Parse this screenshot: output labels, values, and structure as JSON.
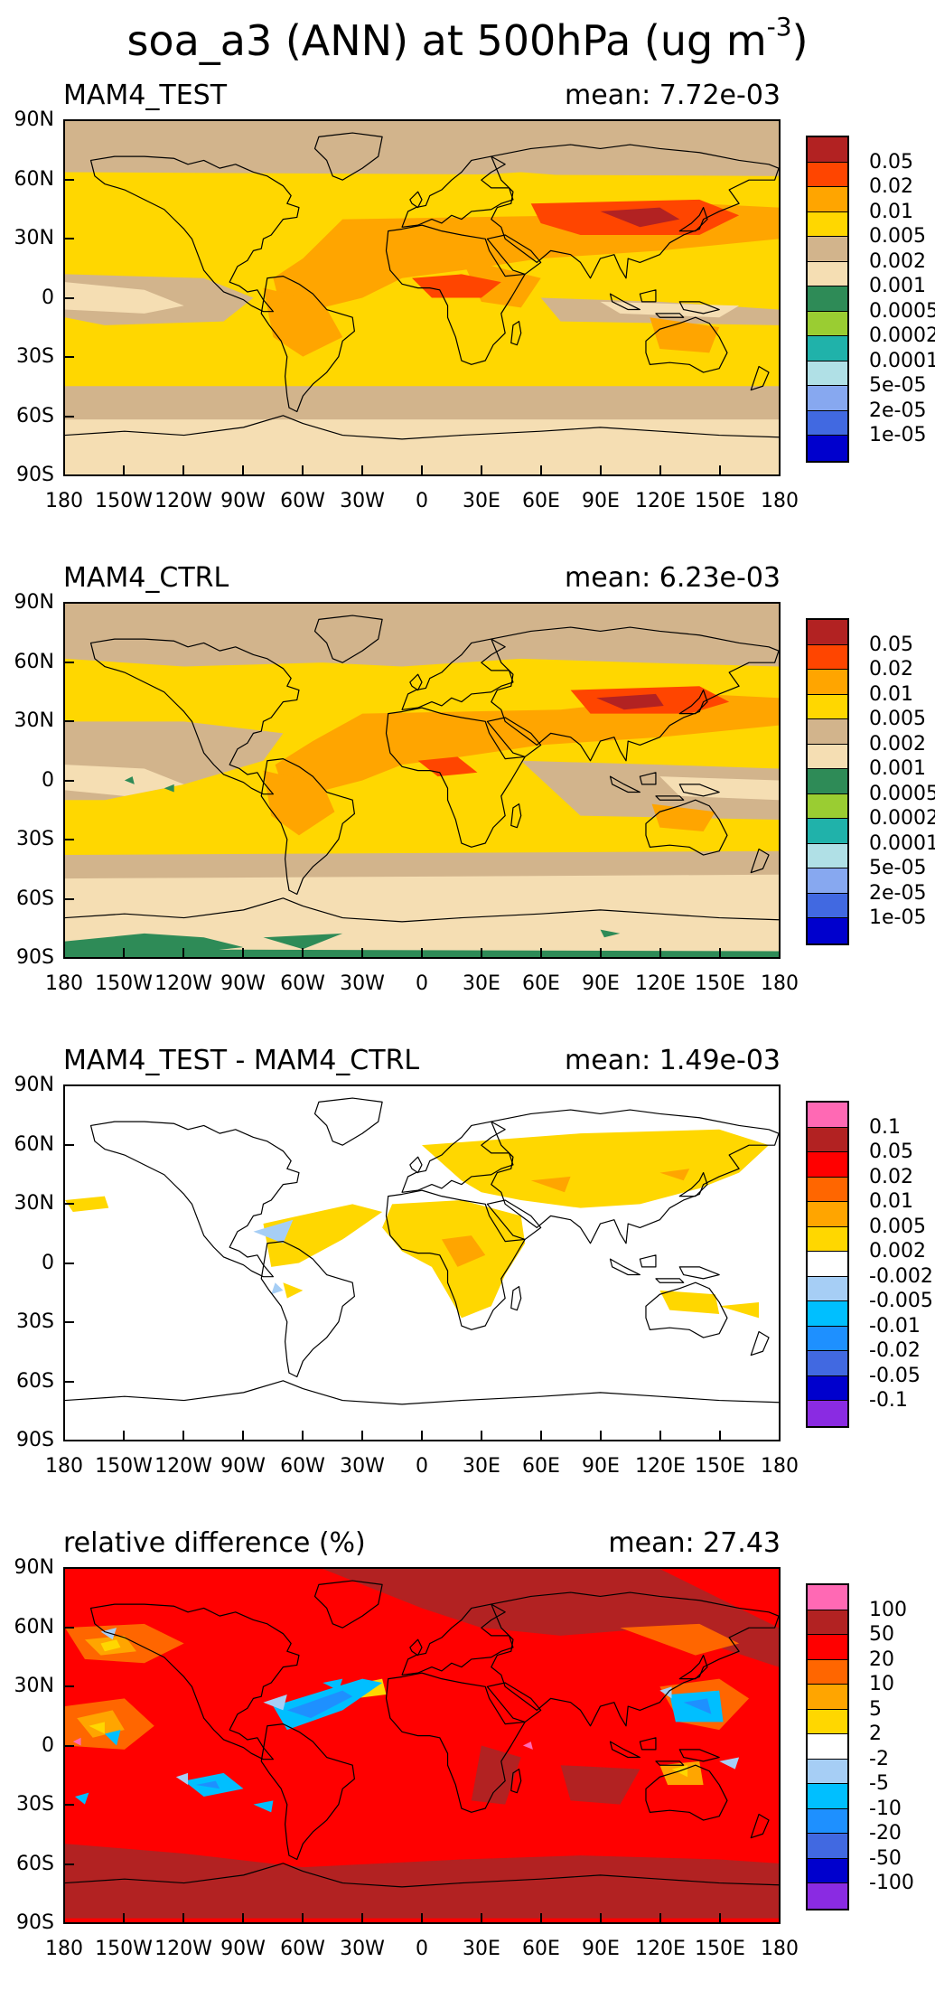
{
  "title": "soa_a3 (ANN) at 500hPa (ug m",
  "title_sup": "-3",
  "title_close": ")",
  "lat_labels": [
    "90N",
    "60N",
    "30N",
    "0",
    "30S",
    "60S",
    "90S"
  ],
  "lon_labels": [
    "180",
    "150W",
    "120W",
    "90W",
    "60W",
    "30W",
    "0",
    "30E",
    "60E",
    "90E",
    "120E",
    "150E",
    "180"
  ],
  "panels": [
    {
      "name": "MAM4_TEST",
      "mean": "mean: 7.72e-03",
      "levels": [
        "0.05",
        "0.02",
        "0.01",
        "0.005",
        "0.002",
        "0.001",
        "0.0005",
        "0.0002",
        "0.0001",
        "5e-05",
        "2e-05",
        "1e-05"
      ],
      "colors": [
        "#b22222",
        "#ff4500",
        "#ffa500",
        "#ffd700",
        "#d2b48c",
        "#f5deb3",
        "#2e8b57",
        "#9acd32",
        "#20b2aa",
        "#b0e0e6",
        "#87a8f0",
        "#4169e1",
        "#0000cd"
      ]
    },
    {
      "name": "MAM4_CTRL",
      "mean": "mean: 6.23e-03",
      "levels": [
        "0.05",
        "0.02",
        "0.01",
        "0.005",
        "0.002",
        "0.001",
        "0.0005",
        "0.0002",
        "0.0001",
        "5e-05",
        "2e-05",
        "1e-05"
      ],
      "colors": [
        "#b22222",
        "#ff4500",
        "#ffa500",
        "#ffd700",
        "#d2b48c",
        "#f5deb3",
        "#2e8b57",
        "#9acd32",
        "#20b2aa",
        "#b0e0e6",
        "#87a8f0",
        "#4169e1",
        "#0000cd"
      ]
    },
    {
      "name": "MAM4_TEST - MAM4_CTRL",
      "mean": "mean: 1.49e-03",
      "levels": [
        "0.1",
        "0.05",
        "0.02",
        "0.01",
        "0.005",
        "0.002",
        "-0.002",
        "-0.005",
        "-0.01",
        "-0.02",
        "-0.05",
        "-0.1"
      ],
      "colors": [
        "#ff69b4",
        "#b22222",
        "#ff0000",
        "#ff6600",
        "#ffa500",
        "#ffd700",
        "#ffffff",
        "#a6cef5",
        "#00bfff",
        "#1e90ff",
        "#4169e1",
        "#0000cd",
        "#8a2be2"
      ]
    },
    {
      "name": "relative difference (%)",
      "mean": "mean: 27.43",
      "levels": [
        "100",
        "50",
        "20",
        "10",
        "5",
        "2",
        "-2",
        "-5",
        "-10",
        "-20",
        "-50",
        "-100"
      ],
      "colors": [
        "#ff69b4",
        "#b22222",
        "#ff0000",
        "#ff6600",
        "#ffa500",
        "#ffd700",
        "#ffffff",
        "#a6cef5",
        "#00bfff",
        "#1e90ff",
        "#4169e1",
        "#0000cd",
        "#8a2be2"
      ]
    }
  ]
}
